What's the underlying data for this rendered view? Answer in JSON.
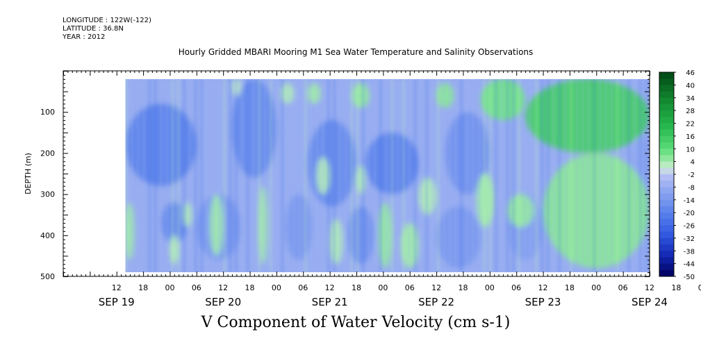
{
  "header": {
    "longitude": "LONGITUDE : 122W(-122)",
    "latitude": "LATITUDE : 36.8N",
    "year": "YEAR : 2012",
    "subtitle": "Hourly Gridded MBARI Mooring M1 Sea Water Temperature and Salinity Observations"
  },
  "chart_data": {
    "type": "heatmap",
    "title": "V Component of Water Velocity (cm s-1)",
    "ylabel": "DEPTH (m)",
    "xlabel": "",
    "x_hours_range": [
      0,
      132
    ],
    "y_range": [
      0,
      500
    ],
    "y_inverted": true,
    "y_ticks": [
      100,
      200,
      300,
      400,
      500
    ],
    "x_hour_ticks": [
      "12",
      "18",
      "00",
      "06",
      "12",
      "18",
      "00",
      "06",
      "12",
      "18",
      "00",
      "06",
      "12",
      "18",
      "00",
      "06",
      "12",
      "18",
      "00",
      "06",
      "12",
      "18",
      "00",
      "06",
      "12",
      "18"
    ],
    "date_labels": [
      "SEP 19",
      "SEP 20",
      "SEP 21",
      "SEP 22",
      "SEP 23",
      "SEP 24"
    ],
    "data_extent": {
      "time_start_hours": 14,
      "time_end_hours": 132,
      "depth_top": 20,
      "depth_bottom": 490
    },
    "colorbar": {
      "labels": [
        "46",
        "40",
        "34",
        "28",
        "22",
        "16",
        "10",
        "4",
        "-2",
        "-8",
        "-14",
        "-20",
        "-26",
        "-32",
        "-38",
        "-44",
        "-50"
      ],
      "levels": [
        46,
        43,
        40,
        37,
        34,
        31,
        28,
        25,
        22,
        19,
        16,
        13,
        10,
        7,
        4,
        1,
        -2,
        -5,
        -8,
        -11,
        -14,
        -17,
        -20,
        -23,
        -26,
        -29,
        -32,
        -35,
        -38,
        -41,
        -44,
        -47,
        -50
      ],
      "min": -50,
      "max": 46
    },
    "positive_regions": [
      {
        "t0": 104,
        "t1": 132,
        "d0": 20,
        "d1": 200,
        "v": 14
      },
      {
        "t0": 108,
        "t1": 132,
        "d0": 200,
        "d1": 480,
        "v": 6
      },
      {
        "t0": 94,
        "t1": 104,
        "d0": 20,
        "d1": 120,
        "v": 8
      },
      {
        "t0": 100,
        "t1": 106,
        "d0": 300,
        "d1": 380,
        "v": 5
      },
      {
        "t0": 93,
        "t1": 97,
        "d0": 250,
        "d1": 380,
        "v": 4
      },
      {
        "t0": 84,
        "t1": 88,
        "d0": 30,
        "d1": 90,
        "v": 6
      },
      {
        "t0": 76,
        "t1": 80,
        "d0": 370,
        "d1": 480,
        "v": 4
      },
      {
        "t0": 71,
        "t1": 74,
        "d0": 320,
        "d1": 480,
        "v": 5
      },
      {
        "t0": 65,
        "t1": 69,
        "d0": 30,
        "d1": 90,
        "v": 5
      },
      {
        "t0": 55,
        "t1": 58,
        "d0": 30,
        "d1": 80,
        "v": 4
      },
      {
        "t0": 66,
        "t1": 68,
        "d0": 230,
        "d1": 300,
        "v": 3
      },
      {
        "t0": 44,
        "t1": 46,
        "d0": 280,
        "d1": 470,
        "v": 4
      },
      {
        "t0": 57,
        "t1": 60,
        "d0": 210,
        "d1": 300,
        "v": 3
      },
      {
        "t0": 60,
        "t1": 63,
        "d0": 360,
        "d1": 470,
        "v": 3
      },
      {
        "t0": 33,
        "t1": 36,
        "d0": 300,
        "d1": 450,
        "v": 4
      },
      {
        "t0": 27,
        "t1": 29,
        "d0": 320,
        "d1": 380,
        "v": 3
      },
      {
        "t0": 14,
        "t1": 16,
        "d0": 320,
        "d1": 460,
        "v": 4
      },
      {
        "t0": 24,
        "t1": 26,
        "d0": 400,
        "d1": 470,
        "v": 3
      },
      {
        "t0": 38,
        "t1": 40,
        "d0": 20,
        "d1": 60,
        "v": 2
      },
      {
        "t0": 49,
        "t1": 52,
        "d0": 30,
        "d1": 80,
        "v": 3
      },
      {
        "t0": 80,
        "t1": 84,
        "d0": 260,
        "d1": 350,
        "v": 3
      }
    ],
    "negative_regions": [
      {
        "t0": 14,
        "t1": 30,
        "d0": 80,
        "d1": 280,
        "v": -20
      },
      {
        "t0": 22,
        "t1": 28,
        "d0": 320,
        "d1": 420,
        "v": -18
      },
      {
        "t0": 38,
        "t1": 48,
        "d0": 20,
        "d1": 260,
        "v": -18
      },
      {
        "t0": 55,
        "t1": 66,
        "d0": 120,
        "d1": 330,
        "v": -18
      },
      {
        "t0": 68,
        "t1": 80,
        "d0": 150,
        "d1": 300,
        "v": -20
      },
      {
        "t0": 86,
        "t1": 96,
        "d0": 100,
        "d1": 300,
        "v": -16
      },
      {
        "t0": 30,
        "t1": 40,
        "d0": 300,
        "d1": 460,
        "v": -14
      },
      {
        "t0": 50,
        "t1": 56,
        "d0": 300,
        "d1": 460,
        "v": -14
      },
      {
        "t0": 64,
        "t1": 70,
        "d0": 330,
        "d1": 470,
        "v": -16
      },
      {
        "t0": 84,
        "t1": 94,
        "d0": 330,
        "d1": 480,
        "v": -14
      },
      {
        "t0": 100,
        "t1": 108,
        "d0": 300,
        "d1": 460,
        "v": -12
      },
      {
        "t0": 128,
        "t1": 132,
        "d0": 160,
        "d1": 300,
        "v": -10
      }
    ]
  }
}
